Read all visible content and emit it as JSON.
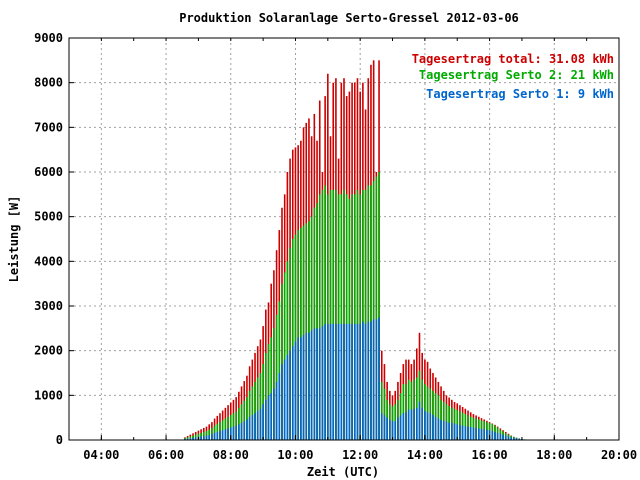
{
  "chart_data": {
    "type": "bar",
    "title": "Produktion Solaranlage Serto-Gressel 2012-03-06",
    "xlabel": "Zeit (UTC)",
    "ylabel": "Leistung [W]",
    "xlim": [
      "03:00",
      "20:00"
    ],
    "ylim": [
      0,
      9000
    ],
    "y_ticks": [
      "0",
      "1000",
      "2000",
      "3000",
      "4000",
      "5000",
      "6000",
      "7000",
      "8000",
      "9000"
    ],
    "x_ticks": [
      "04:00",
      "06:00",
      "08:00",
      "10:00",
      "12:00",
      "14:00",
      "16:00",
      "18:00",
      "20:00"
    ],
    "grid": true,
    "legend_position": "top-right",
    "legend": [
      {
        "label": "Tagesertrag total: 31.08 kWh",
        "color": "#cc0000"
      },
      {
        "label": "Tagesertrag Serto 2: 21 kWh",
        "color": "#00aa00"
      },
      {
        "label": "Tagesertrag Serto 1: 9 kWh",
        "color": "#0066cc"
      }
    ],
    "series": [
      {
        "name": "Serto 1",
        "color": "#0066cc"
      },
      {
        "name": "Serto 2",
        "color": "#00aa00"
      },
      {
        "name": "total",
        "color": "#cc0000"
      }
    ],
    "x": [
      "06:35",
      "06:40",
      "06:45",
      "06:50",
      "06:55",
      "07:00",
      "07:05",
      "07:10",
      "07:15",
      "07:20",
      "07:25",
      "07:30",
      "07:35",
      "07:40",
      "07:45",
      "07:50",
      "07:55",
      "08:00",
      "08:05",
      "08:10",
      "08:15",
      "08:20",
      "08:25",
      "08:30",
      "08:35",
      "08:40",
      "08:45",
      "08:50",
      "08:55",
      "09:00",
      "09:05",
      "09:10",
      "09:15",
      "09:20",
      "09:25",
      "09:30",
      "09:35",
      "09:40",
      "09:45",
      "09:50",
      "09:55",
      "10:00",
      "10:05",
      "10:10",
      "10:15",
      "10:20",
      "10:25",
      "10:30",
      "10:35",
      "10:40",
      "10:45",
      "10:50",
      "10:55",
      "11:00",
      "11:05",
      "11:10",
      "11:15",
      "11:20",
      "11:25",
      "11:30",
      "11:35",
      "11:40",
      "11:45",
      "11:50",
      "11:55",
      "12:00",
      "12:05",
      "12:10",
      "12:15",
      "12:20",
      "12:25",
      "12:30",
      "12:35",
      "12:40",
      "12:45",
      "12:50",
      "12:55",
      "13:00",
      "13:05",
      "13:10",
      "13:15",
      "13:20",
      "13:25",
      "13:30",
      "13:35",
      "13:40",
      "13:45",
      "13:50",
      "13:55",
      "14:00",
      "14:05",
      "14:10",
      "14:15",
      "14:20",
      "14:25",
      "14:30",
      "14:35",
      "14:40",
      "14:45",
      "14:50",
      "14:55",
      "15:00",
      "15:05",
      "15:10",
      "15:15",
      "15:20",
      "15:25",
      "15:30",
      "15:35",
      "15:40",
      "15:45",
      "15:50",
      "15:55",
      "16:00",
      "16:05",
      "16:10",
      "16:15",
      "16:20",
      "16:25",
      "16:30",
      "16:35",
      "16:40",
      "16:45",
      "16:50",
      "16:55",
      "17:00",
      "17:05",
      "17:10"
    ],
    "serto1": [
      20,
      30,
      40,
      50,
      60,
      70,
      80,
      90,
      100,
      110,
      130,
      160,
      180,
      200,
      220,
      240,
      260,
      280,
      300,
      320,
      350,
      380,
      420,
      460,
      520,
      560,
      600,
      650,
      700,
      800,
      900,
      1000,
      1050,
      1150,
      1300,
      1500,
      1700,
      1800,
      1900,
      2000,
      2100,
      2200,
      2300,
      2300,
      2350,
      2400,
      2400,
      2450,
      2500,
      2500,
      2500,
      2550,
      2600,
      2600,
      2600,
      2600,
      2600,
      2600,
      2600,
      2600,
      2600,
      2600,
      2600,
      2600,
      2600,
      2600,
      2650,
      2600,
      2650,
      2650,
      2700,
      2700,
      2750,
      600,
      550,
      500,
      450,
      420,
      420,
      500,
      550,
      600,
      620,
      680,
      680,
      700,
      720,
      850,
      720,
      650,
      620,
      600,
      560,
      520,
      480,
      450,
      430,
      410,
      390,
      380,
      370,
      350,
      340,
      320,
      310,
      300,
      290,
      280,
      270,
      260,
      250,
      240,
      230,
      220,
      200,
      180,
      160,
      140,
      120,
      100,
      80,
      60,
      50,
      40,
      30,
      20,
      15,
      10
    ],
    "serto2": [
      40,
      60,
      80,
      100,
      120,
      140,
      160,
      180,
      200,
      230,
      270,
      320,
      360,
      400,
      440,
      480,
      520,
      560,
      600,
      640,
      720,
      800,
      880,
      960,
      1100,
      1200,
      1300,
      1400,
      1500,
      1700,
      1950,
      2150,
      2300,
      2500,
      2800,
      3100,
      3500,
      3750,
      4000,
      4300,
      4500,
      4600,
      4700,
      4750,
      4800,
      4850,
      4900,
      5000,
      5200,
      5300,
      5500,
      5600,
      5700,
      5500,
      5600,
      5600,
      5600,
      5500,
      5500,
      5600,
      5500,
      5400,
      5500,
      5500,
      5600,
      5500,
      5600,
      5600,
      5700,
      5700,
      5800,
      5900,
      6000,
      1300,
      1150,
      900,
      800,
      750,
      800,
      900,
      1050,
      1250,
      1250,
      1350,
      1300,
      1350,
      1400,
      1550,
      1350,
      1250,
      1200,
      1150,
      1100,
      1050,
      1000,
      900,
      850,
      800,
      760,
      720,
      700,
      670,
      640,
      610,
      580,
      550,
      520,
      500,
      480,
      460,
      440,
      420,
      400,
      380,
      360,
      320,
      280,
      230,
      190,
      150,
      120,
      90,
      70,
      50,
      35,
      20,
      10,
      0
    ],
    "total": [
      60,
      90,
      120,
      150,
      180,
      210,
      240,
      270,
      300,
      350,
      400,
      480,
      540,
      600,
      660,
      720,
      780,
      840,
      900,
      960,
      1080,
      1200,
      1320,
      1440,
      1650,
      1800,
      1950,
      2100,
      2250,
      2550,
      2920,
      3080,
      3500,
      3800,
      4250,
      4700,
      5200,
      5500,
      6000,
      6300,
      6500,
      6550,
      6600,
      6700,
      7000,
      7100,
      7200,
      6800,
      7300,
      6700,
      7600,
      6000,
      7700,
      8200,
      6800,
      8000,
      8100,
      6300,
      8000,
      8100,
      7700,
      7800,
      8000,
      8000,
      8100,
      7800,
      8000,
      7400,
      8100,
      8400,
      8500,
      6000,
      8500,
      2000,
      1700,
      1300,
      1100,
      1000,
      1100,
      1300,
      1500,
      1700,
      1800,
      1800,
      1700,
      1800,
      2050,
      2400,
      1950,
      1800,
      1750,
      1600,
      1500,
      1400,
      1300,
      1200,
      1100,
      1000,
      950,
      900,
      850,
      820,
      780,
      740,
      700,
      660,
      620,
      580,
      550,
      520,
      490,
      460,
      430,
      400,
      370,
      340,
      300,
      260,
      220,
      180,
      140,
      100,
      70,
      50,
      35,
      20,
      10,
      0
    ]
  }
}
